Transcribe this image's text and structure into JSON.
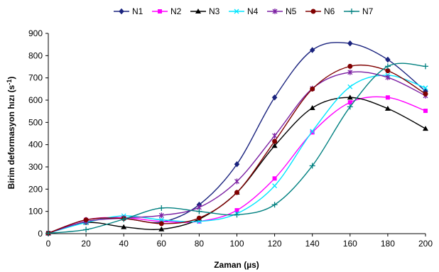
{
  "chart_data": {
    "type": "line",
    "title": "",
    "xlabel": "Zaman (µs)",
    "ylabel_main": "Birim deformasyon hızı (s",
    "ylabel_sup": "-1",
    "ylabel_close": ")",
    "xlim": [
      0,
      200
    ],
    "ylim": [
      0,
      900
    ],
    "xticks": [
      0,
      20,
      40,
      60,
      80,
      100,
      120,
      140,
      160,
      180,
      200
    ],
    "yticks": [
      0,
      100,
      200,
      300,
      400,
      500,
      600,
      700,
      800,
      900
    ],
    "grid": false,
    "smooth": true,
    "legend_position": "top",
    "x": [
      0,
      20,
      40,
      60,
      80,
      100,
      120,
      140,
      160,
      180,
      200
    ],
    "series": [
      {
        "name": "N1",
        "color": "#1a237e",
        "marker": "diamond",
        "values": [
          2,
          62,
          68,
          52,
          130,
          312,
          612,
          825,
          855,
          782,
          640
        ]
      },
      {
        "name": "N2",
        "color": "#ff00ff",
        "marker": "square",
        "values": [
          2,
          62,
          72,
          55,
          55,
          105,
          248,
          455,
          590,
          612,
          552
        ]
      },
      {
        "name": "N3",
        "color": "#000000",
        "marker": "triangle",
        "values": [
          2,
          50,
          30,
          20,
          65,
          185,
          395,
          565,
          612,
          562,
          472
        ]
      },
      {
        "name": "N4",
        "color": "#00e5ff",
        "marker": "x",
        "values": [
          2,
          50,
          80,
          62,
          55,
          90,
          215,
          460,
          660,
          712,
          655
        ]
      },
      {
        "name": "N5",
        "color": "#7b1fa2",
        "marker": "star",
        "values": [
          2,
          55,
          70,
          82,
          118,
          235,
          440,
          652,
          725,
          702,
          620
        ]
      },
      {
        "name": "N6",
        "color": "#800000",
        "marker": "circle",
        "values": [
          2,
          62,
          68,
          45,
          70,
          185,
          415,
          650,
          752,
          732,
          628
        ]
      },
      {
        "name": "N7",
        "color": "#008080",
        "marker": "plus",
        "values": [
          2,
          18,
          65,
          115,
          100,
          85,
          130,
          305,
          570,
          752,
          752
        ]
      }
    ]
  }
}
